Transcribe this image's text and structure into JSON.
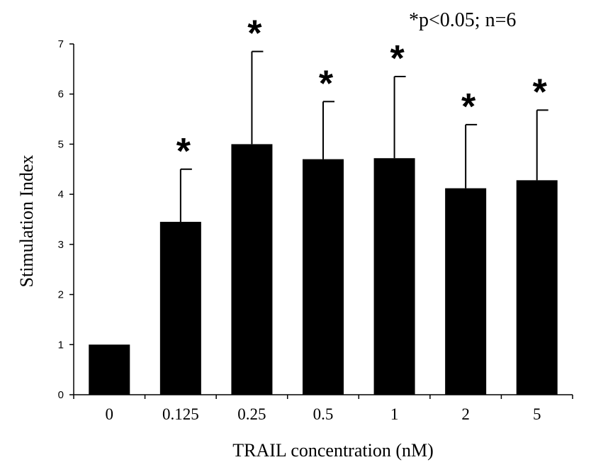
{
  "chart_data": {
    "type": "bar",
    "annotation": "*p<0.05; n=6",
    "xlabel": "TRAIL concentration (nM)",
    "ylabel": "Stimulation Index",
    "ylim": [
      0,
      7
    ],
    "yticks": [
      "0",
      "1",
      "2",
      "3",
      "4",
      "5",
      "6",
      "7"
    ],
    "categories": [
      "0",
      "0.125",
      "0.25",
      "0.5",
      "1",
      "2",
      "5"
    ],
    "values": [
      1.0,
      3.45,
      5.0,
      4.7,
      4.72,
      4.12,
      4.28
    ],
    "error_upper": [
      0,
      1.05,
      1.85,
      1.15,
      1.63,
      1.27,
      1.4
    ],
    "significance_marker": "*",
    "significant": [
      false,
      true,
      true,
      true,
      true,
      true,
      true
    ],
    "bar_color": "#000000",
    "grid": false,
    "legend": "none"
  }
}
